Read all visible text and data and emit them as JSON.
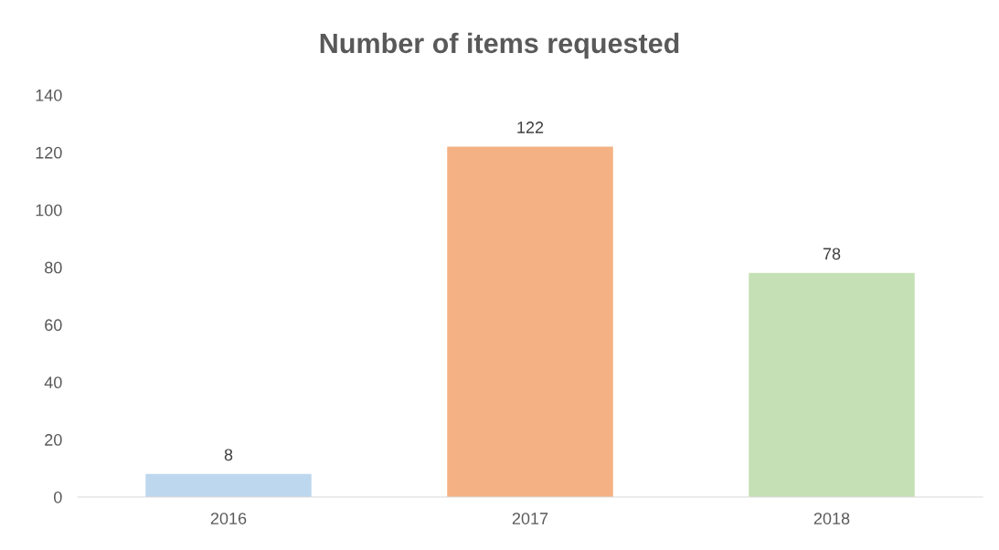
{
  "chart_data": {
    "type": "bar",
    "title": "Number of items requested",
    "categories": [
      "2016",
      "2017",
      "2018"
    ],
    "values": [
      8,
      122,
      78
    ],
    "colors": [
      "#bdd7ee",
      "#f4b183",
      "#c5e0b4"
    ],
    "ylim": [
      0,
      140
    ],
    "yticks": [
      0,
      20,
      40,
      60,
      80,
      100,
      120,
      140
    ],
    "data_labels": true,
    "grid": false,
    "legend": false
  }
}
